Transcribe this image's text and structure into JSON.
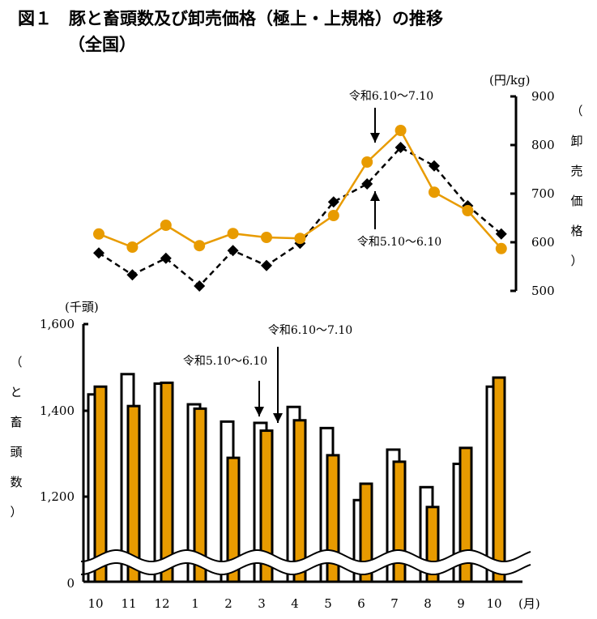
{
  "title": "図１　豚と畜頭数及び卸売価格（極上・上規格）の推移",
  "subtitle": "（全国）",
  "colors": {
    "orange": "#E89B00",
    "black": "#000000",
    "white": "#FFFFFF"
  },
  "chart_data": [
    {
      "type": "line",
      "categories": [
        "10",
        "11",
        "12",
        "1",
        "2",
        "3",
        "4",
        "5",
        "6",
        "7",
        "8",
        "9",
        "10"
      ],
      "ylabel": "（卸売価格）",
      "yunit": "(円/kg)",
      "ylim": [
        500,
        900
      ],
      "yticks": [
        "900",
        "800",
        "700",
        "600",
        "500"
      ],
      "axis_position": "right",
      "series": [
        {
          "style": "orange solid line, circle markers",
          "values": [
            617,
            590,
            635,
            593,
            618,
            610,
            608,
            655,
            765,
            830,
            703,
            665,
            587
          ]
        },
        {
          "style": "black dashed line, diamond markers",
          "values": [
            578,
            533,
            567,
            510,
            583,
            552,
            598,
            683,
            720,
            795,
            757,
            675,
            617
          ]
        }
      ],
      "annotations": [
        "令和6.10～7.10",
        "令和5.10～6.10"
      ]
    },
    {
      "type": "bar",
      "categories": [
        "10",
        "11",
        "12",
        "1",
        "2",
        "3",
        "4",
        "5",
        "6",
        "7",
        "8",
        "9",
        "10"
      ],
      "xunit": "(月)",
      "ylabel": "（と畜頭数）",
      "yunit": "(千頭)",
      "ylim": [
        0,
        1600
      ],
      "axis_break": true,
      "yticks": [
        "1,600",
        "1,400",
        "1,200",
        "0"
      ],
      "series": [
        {
          "style": "white bars",
          "values": [
            1437,
            1484,
            1462,
            1414,
            1374,
            1371,
            1408,
            1359,
            1192,
            1309,
            1222,
            1276,
            1455
          ]
        },
        {
          "style": "orange bars",
          "values": [
            1455,
            1410,
            1464,
            1404,
            1290,
            1353,
            1377,
            1296,
            1230,
            1281,
            1176,
            1313,
            1476
          ]
        }
      ],
      "annotations": [
        "令和6.10～7.10",
        "令和5.10～6.10"
      ]
    }
  ]
}
